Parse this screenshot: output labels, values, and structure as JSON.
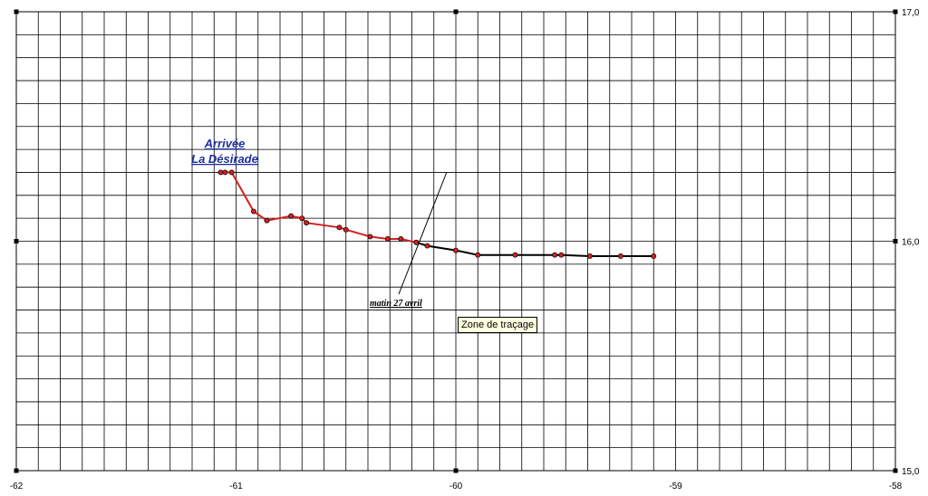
{
  "chart_data": {
    "type": "line",
    "title": "",
    "xlabel": "",
    "ylabel": "",
    "xlim": [
      -62,
      -58
    ],
    "ylim": [
      15,
      17
    ],
    "x_ticks": [
      "-62",
      "-61",
      "-60",
      "-59",
      "-58"
    ],
    "y_ticks": [
      "15,0",
      "16,0",
      "17,0"
    ],
    "grid": true,
    "series": [
      {
        "color": "#d42020",
        "points": [
          [
            -61.07,
            16.3
          ],
          [
            -61.05,
            16.3
          ],
          [
            -61.02,
            16.3
          ],
          [
            -60.92,
            16.13
          ],
          [
            -60.86,
            16.09
          ],
          [
            -60.75,
            16.11
          ],
          [
            -60.7,
            16.1
          ],
          [
            -60.68,
            16.08
          ],
          [
            -60.53,
            16.06
          ],
          [
            -60.5,
            16.05
          ],
          [
            -60.39,
            16.02
          ],
          [
            -60.31,
            16.01
          ],
          [
            -60.25,
            16.01
          ],
          [
            -60.18,
            15.995
          ]
        ]
      },
      {
        "color": "#000000",
        "points": [
          [
            -60.18,
            15.995
          ],
          [
            -60.13,
            15.98
          ],
          [
            -60.0,
            15.96
          ],
          [
            -59.9,
            15.94
          ],
          [
            -59.73,
            15.94
          ],
          [
            -59.55,
            15.94
          ],
          [
            -59.52,
            15.94
          ],
          [
            -59.39,
            15.935
          ],
          [
            -59.25,
            15.935
          ],
          [
            -59.1,
            15.935
          ]
        ]
      }
    ],
    "annotations": {
      "arrival_line1": "Arrivée",
      "arrival_line2": "La Désirade",
      "morning": "matin 27 avril"
    }
  },
  "tooltip": "Zone de traçage"
}
